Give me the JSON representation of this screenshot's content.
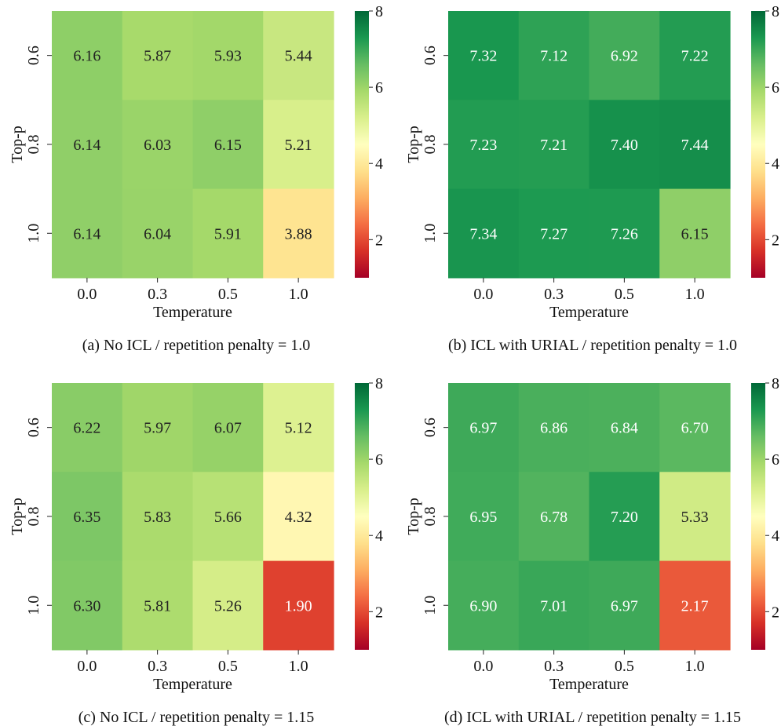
{
  "colormap": {
    "name": "RdYlGn",
    "stops": [
      [
        0.0,
        "#a50026"
      ],
      [
        0.1,
        "#d73027"
      ],
      [
        0.2,
        "#f46d43"
      ],
      [
        0.3,
        "#fdae61"
      ],
      [
        0.4,
        "#fee08b"
      ],
      [
        0.5,
        "#ffffbf"
      ],
      [
        0.6,
        "#d9ef8b"
      ],
      [
        0.7,
        "#a6d96a"
      ],
      [
        0.8,
        "#66bd63"
      ],
      [
        0.9,
        "#1a9850"
      ],
      [
        1.0,
        "#006837"
      ]
    ],
    "vmin": 1,
    "vmax": 8
  },
  "chart_data": [
    {
      "type": "heatmap",
      "caption": "(a) No ICL / repetition penalty = 1.0",
      "xlabel": "Temperature",
      "ylabel": "Top-p",
      "x_categories": [
        "0.0",
        "0.3",
        "0.5",
        "1.0"
      ],
      "y_categories": [
        "0.6",
        "0.8",
        "1.0"
      ],
      "values": [
        [
          6.16,
          5.87,
          5.93,
          5.44
        ],
        [
          6.14,
          6.03,
          6.15,
          5.21
        ],
        [
          6.14,
          6.04,
          5.91,
          3.88
        ]
      ],
      "colorbar_ticks": [
        2,
        4,
        6,
        8
      ],
      "colorbar_range": [
        1,
        8
      ]
    },
    {
      "type": "heatmap",
      "caption": "(b) ICL with URIAL / repetition penalty = 1.0",
      "xlabel": "Temperature",
      "ylabel": "Top-p",
      "x_categories": [
        "0.0",
        "0.3",
        "0.5",
        "1.0"
      ],
      "y_categories": [
        "0.6",
        "0.8",
        "1.0"
      ],
      "values": [
        [
          7.32,
          7.12,
          6.92,
          7.22
        ],
        [
          7.23,
          7.21,
          7.4,
          7.44
        ],
        [
          7.34,
          7.27,
          7.26,
          6.15
        ]
      ],
      "colorbar_ticks": [
        2,
        4,
        6,
        8
      ],
      "colorbar_range": [
        1,
        8
      ]
    },
    {
      "type": "heatmap",
      "caption": "(c) No ICL / repetition penalty = 1.15",
      "xlabel": "Temperature",
      "ylabel": "Top-p",
      "x_categories": [
        "0.0",
        "0.3",
        "0.5",
        "1.0"
      ],
      "y_categories": [
        "0.6",
        "0.8",
        "1.0"
      ],
      "values": [
        [
          6.22,
          5.97,
          6.07,
          5.12
        ],
        [
          6.35,
          5.83,
          5.66,
          4.32
        ],
        [
          6.3,
          5.81,
          5.26,
          1.9
        ]
      ],
      "colorbar_ticks": [
        2,
        4,
        6,
        8
      ],
      "colorbar_range": [
        1,
        8
      ]
    },
    {
      "type": "heatmap",
      "caption": "(d) ICL with URIAL / repetition penalty = 1.15",
      "xlabel": "Temperature",
      "ylabel": "Top-p",
      "x_categories": [
        "0.0",
        "0.3",
        "0.5",
        "1.0"
      ],
      "y_categories": [
        "0.6",
        "0.8",
        "1.0"
      ],
      "values": [
        [
          6.97,
          6.86,
          6.84,
          6.7
        ],
        [
          6.95,
          6.78,
          7.2,
          5.33
        ],
        [
          6.9,
          7.01,
          6.97,
          2.17
        ]
      ],
      "colorbar_ticks": [
        2,
        4,
        6,
        8
      ],
      "colorbar_range": [
        1,
        8
      ]
    }
  ]
}
